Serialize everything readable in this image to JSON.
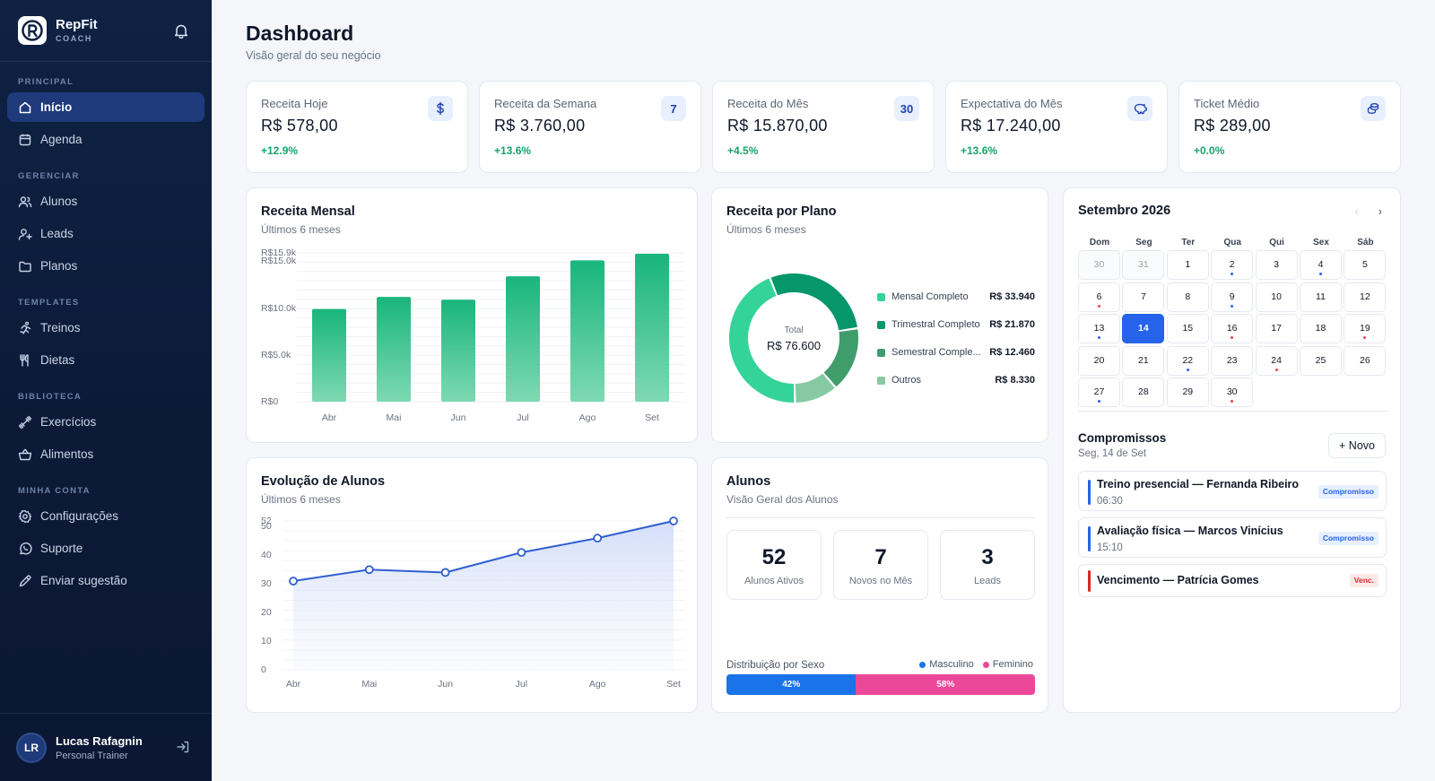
{
  "brand": {
    "name": "RepFit",
    "sub": "COACH"
  },
  "sidebar": {
    "sections": [
      {
        "title": "PRINCIPAL",
        "items": [
          {
            "label": "Início",
            "icon": "home-icon",
            "active": true
          },
          {
            "label": "Agenda",
            "icon": "calendar-icon"
          }
        ]
      },
      {
        "title": "GERENCIAR",
        "items": [
          {
            "label": "Alunos",
            "icon": "users-icon"
          },
          {
            "label": "Leads",
            "icon": "user-plus-icon"
          },
          {
            "label": "Planos",
            "icon": "folder-icon"
          }
        ]
      },
      {
        "title": "TEMPLATES",
        "items": [
          {
            "label": "Treinos",
            "icon": "running-icon"
          },
          {
            "label": "Dietas",
            "icon": "utensils-icon"
          }
        ]
      },
      {
        "title": "BIBLIOTECA",
        "items": [
          {
            "label": "Exercícios",
            "icon": "dumbbell-icon"
          },
          {
            "label": "Alimentos",
            "icon": "basket-icon"
          }
        ]
      },
      {
        "title": "MINHA CONTA",
        "items": [
          {
            "label": "Configurações",
            "icon": "gear-icon"
          },
          {
            "label": "Suporte",
            "icon": "whatsapp-icon"
          },
          {
            "label": "Enviar sugestão",
            "icon": "pen-icon"
          }
        ]
      }
    ]
  },
  "user": {
    "initials": "LR",
    "name": "Lucas Rafagnin",
    "role": "Personal Trainer"
  },
  "page": {
    "title": "Dashboard",
    "subtitle": "Visão geral do seu negócio"
  },
  "stats": [
    {
      "label": "Receita Hoje",
      "value": "R$ 578,00",
      "delta": "+12.9%",
      "icon": "dollar-icon",
      "badge": ""
    },
    {
      "label": "Receita da Semana",
      "value": "R$ 3.760,00",
      "delta": "+13.6%",
      "icon": "number-badge",
      "badge": "7"
    },
    {
      "label": "Receita do Mês",
      "value": "R$ 15.870,00",
      "delta": "+4.5%",
      "icon": "number-badge",
      "badge": "30"
    },
    {
      "label": "Expectativa do Mês",
      "value": "R$ 17.240,00",
      "delta": "+13.6%",
      "icon": "piggy-bank-icon",
      "badge": ""
    },
    {
      "label": "Ticket Médio",
      "value": "R$ 289,00",
      "delta": "+0.0%",
      "icon": "coins-icon",
      "badge": ""
    }
  ],
  "revenue": {
    "title": "Receita Mensal",
    "subtitle": "Últimos 6 meses"
  },
  "plans": {
    "title": "Receita por Plano",
    "subtitle": "Últimos 6 meses",
    "total_label": "Total",
    "total_value": "R$ 76.600"
  },
  "students_evo": {
    "title": "Evolução de Alunos",
    "subtitle": "Últimos 6 meses"
  },
  "students": {
    "title": "Alunos",
    "subtitle": "Visão Geral dos Alunos",
    "cards": [
      {
        "num": "52",
        "label": "Alunos Ativos"
      },
      {
        "num": "7",
        "label": "Novos no Mês"
      },
      {
        "num": "3",
        "label": "Leads"
      }
    ],
    "dist_title": "Distribuição por Sexo",
    "dist": [
      {
        "name": "Masculino",
        "pct": 42,
        "label": "42%",
        "color": "#1a73e8"
      },
      {
        "name": "Feminino",
        "pct": 58,
        "label": "58%",
        "color": "#ec4899"
      }
    ]
  },
  "calendar": {
    "month": "Setembro 2026",
    "weekdays": [
      "Dom",
      "Seg",
      "Ter",
      "Qua",
      "Qui",
      "Sex",
      "Sáb"
    ],
    "days": [
      {
        "d": "30",
        "out": true
      },
      {
        "d": "31",
        "out": true
      },
      {
        "d": "1"
      },
      {
        "d": "2",
        "dot": "blue"
      },
      {
        "d": "3"
      },
      {
        "d": "4",
        "dot": "blue"
      },
      {
        "d": "5"
      },
      {
        "d": "6",
        "dot": "red"
      },
      {
        "d": "7"
      },
      {
        "d": "8"
      },
      {
        "d": "9",
        "dot": "blue"
      },
      {
        "d": "10"
      },
      {
        "d": "11"
      },
      {
        "d": "12"
      },
      {
        "d": "13",
        "dot": "blue"
      },
      {
        "d": "14",
        "today": true
      },
      {
        "d": "15"
      },
      {
        "d": "16",
        "dot": "red"
      },
      {
        "d": "17"
      },
      {
        "d": "18"
      },
      {
        "d": "19",
        "dot": "red"
      },
      {
        "d": "20"
      },
      {
        "d": "21"
      },
      {
        "d": "22",
        "dot": "blue"
      },
      {
        "d": "23"
      },
      {
        "d": "24",
        "dot": "red"
      },
      {
        "d": "25"
      },
      {
        "d": "26"
      },
      {
        "d": "27",
        "dot": "blue"
      },
      {
        "d": "28"
      },
      {
        "d": "29"
      },
      {
        "d": "30",
        "dot": "red"
      }
    ]
  },
  "appointments": {
    "title": "Compromissos",
    "date": "Seg, 14 de Set",
    "new_label": "+ Novo",
    "items": [
      {
        "title": "Treino presencial — Fernanda Ribeiro",
        "time": "06:30",
        "tag": "Compromisso",
        "color": "#2563eb"
      },
      {
        "title": "Avaliação física — Marcos Vinícius",
        "time": "15:10",
        "tag": "Compromisso",
        "color": "#2563eb"
      },
      {
        "title": "Vencimento — Patrícia Gomes",
        "time": "",
        "tag": "Venc.",
        "color": "#dc2626"
      }
    ]
  },
  "chart_data": [
    {
      "type": "bar",
      "categories": [
        "Abr",
        "Mai",
        "Jun",
        "Jul",
        "Ago",
        "Set"
      ],
      "values": [
        9900,
        11200,
        10900,
        13400,
        15100,
        15800
      ],
      "ytick_labels": [
        "R$0",
        "R$5.0k",
        "R$10.0k",
        "R$15.0k",
        "R$15.9k"
      ],
      "ylim": [
        0,
        15900
      ],
      "grid": true
    },
    {
      "type": "pie",
      "labels": [
        "Mensal Completo",
        "Trimestral Completo",
        "Semestral Completo",
        "Outros"
      ],
      "display_labels": [
        "Mensal Completo",
        "Trimestral Completo",
        "Semestral Comple...",
        "Outros"
      ],
      "values": [
        33940,
        21870,
        12460,
        8330
      ],
      "value_labels": [
        "R$ 33.940",
        "R$ 21.870",
        "R$ 12.460",
        "R$ 8.330"
      ],
      "colors": [
        "#34d399",
        "#059669",
        "#3f9c6b",
        "#86c9a3"
      ]
    },
    {
      "type": "area",
      "x": [
        "Abr",
        "Mai",
        "Jun",
        "Jul",
        "Ago",
        "Set"
      ],
      "values": [
        31,
        35,
        34,
        41,
        46,
        52
      ],
      "yticks": [
        0,
        10,
        20,
        30,
        40,
        50,
        52
      ],
      "ylim": [
        0,
        52
      ],
      "color": "#2f5fd0"
    }
  ]
}
